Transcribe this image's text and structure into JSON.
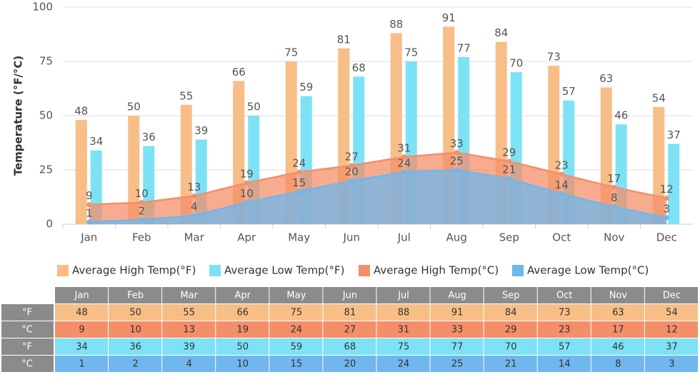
{
  "chart_data": {
    "type": "bar",
    "ylabel": "Temperature (°F/°C)",
    "categories": [
      "Jan",
      "Feb",
      "Mar",
      "Apr",
      "May",
      "Jun",
      "Jul",
      "Aug",
      "Sep",
      "Oct",
      "Nov",
      "Dec"
    ],
    "series": [
      {
        "name": "Average High Temp(°F)",
        "color": "#f7be87",
        "type": "bar",
        "values": [
          48,
          50,
          55,
          66,
          75,
          81,
          88,
          91,
          84,
          73,
          63,
          54
        ]
      },
      {
        "name": "Average Low Temp(°F)",
        "color": "#7de2f5",
        "type": "bar",
        "values": [
          34,
          36,
          39,
          50,
          59,
          68,
          75,
          77,
          70,
          57,
          46,
          37
        ]
      },
      {
        "name": "Average High Temp(°C)",
        "color": "#f48f6a",
        "type": "area",
        "values": [
          9,
          10,
          13,
          19,
          24,
          27,
          31,
          33,
          29,
          23,
          17,
          12
        ]
      },
      {
        "name": "Average Low Temp(°C)",
        "color": "#6fb7ec",
        "type": "area",
        "values": [
          1,
          2,
          4,
          10,
          15,
          20,
          24,
          25,
          21,
          14,
          8,
          3
        ]
      }
    ],
    "ylim": [
      0,
      100
    ],
    "yticks": [
      0,
      25,
      50,
      75,
      100
    ],
    "grid": true
  },
  "table": {
    "row_labels": [
      "°F",
      "°C",
      "°F",
      "°C"
    ]
  }
}
